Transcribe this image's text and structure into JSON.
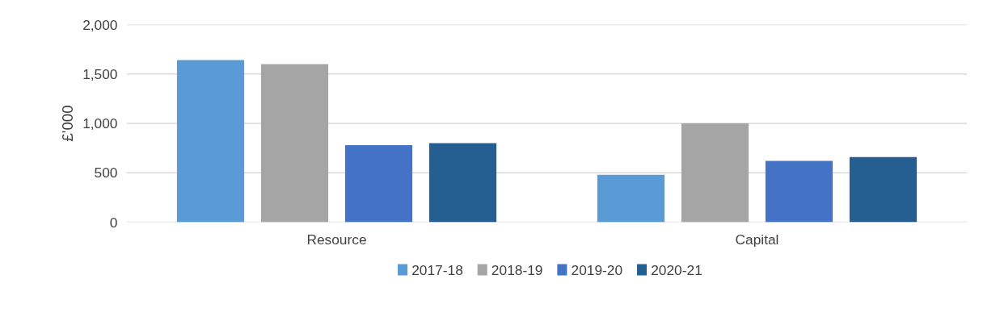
{
  "chart_data": {
    "type": "bar",
    "ylabel": "£'000",
    "categories": [
      "Resource",
      "Capital"
    ],
    "series": [
      {
        "name": "2017-18",
        "color": "#5b9bd5",
        "values": [
          1640,
          480
        ]
      },
      {
        "name": "2018-19",
        "color": "#a5a5a5",
        "values": [
          1600,
          1000
        ]
      },
      {
        "name": "2019-20",
        "color": "#4472c4",
        "values": [
          780,
          620
        ]
      },
      {
        "name": "2020-21",
        "color": "#255e91",
        "values": [
          800,
          660
        ]
      }
    ],
    "ylim": [
      0,
      2000
    ],
    "yticks": [
      {
        "value": 0,
        "label": "0"
      },
      {
        "value": 500,
        "label": "500"
      },
      {
        "value": 1000,
        "label": "1,000"
      },
      {
        "value": 1500,
        "label": "1,500"
      },
      {
        "value": 2000,
        "label": "2,000"
      }
    ],
    "grid": "y",
    "legend": "bottom"
  }
}
